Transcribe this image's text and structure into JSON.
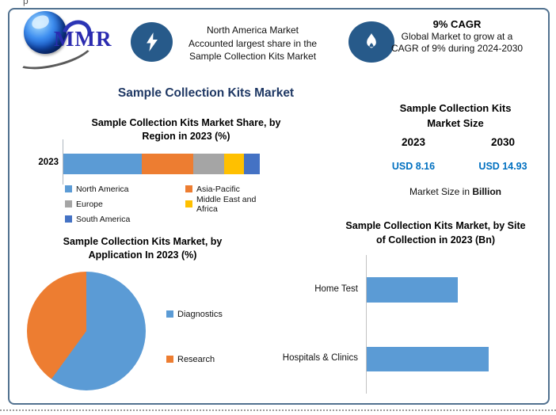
{
  "page": {
    "artifact_top": "p"
  },
  "colors": {
    "accent_navy": "#1F3864",
    "icon_circle_blue": "#275A8A",
    "usd_value_blue": "#0070C0",
    "frame_border": "#51718F",
    "bar_blue": "#5B9BD5",
    "orange": "#ED7D31",
    "gray": "#A5A5A5",
    "yellow": "#FFC000",
    "dark_blue": "#4472C4"
  },
  "header": {
    "logo_text": "MMR",
    "north_america_card": {
      "icon": "lightning-icon",
      "lines": [
        "North America Market",
        "Accounted largest share in the",
        "Sample Collection Kits Market"
      ]
    },
    "cagr_card": {
      "icon": "flame-icon",
      "title": "9% CAGR",
      "lines": [
        "Global Market to grow at a",
        "CAGR of 9% during 2024-2030"
      ]
    }
  },
  "main_title": "Sample Collection Kits Market",
  "region_section": {
    "title_lines": [
      "Sample Collection Kits Market Share, by",
      "Region in 2023 (%)"
    ]
  },
  "market_size_section": {
    "title_lines": [
      "Sample Collection Kits",
      "Market Size"
    ],
    "year_left": "2023",
    "year_right": "2030",
    "value_left": "USD 8.16",
    "value_right": "USD 14.93",
    "note_prefix": "Market Size in ",
    "note_bold": "Billion"
  },
  "application_section": {
    "title_lines": [
      "Sample Collection Kits Market, by",
      "Application In 2023 (%)"
    ]
  },
  "site_section": {
    "title_lines": [
      "Sample Collection Kits Market, by Site",
      "of Collection in 2023 (Bn)"
    ]
  },
  "chart_data": [
    {
      "type": "bar",
      "subtype": "stacked-horizontal",
      "title": "Sample Collection Kits Market Share, by Region in 2023 (%)",
      "categories": [
        "2023"
      ],
      "series": [
        {
          "name": "North America",
          "values": [
            40
          ],
          "color": "#5B9BD5"
        },
        {
          "name": "Asia-Pacific",
          "values": [
            26
          ],
          "color": "#ED7D31"
        },
        {
          "name": "Europe",
          "values": [
            16
          ],
          "color": "#A5A5A5"
        },
        {
          "name": "Middle East and Africa",
          "values": [
            10
          ],
          "color": "#FFC000"
        },
        {
          "name": "South America",
          "values": [
            8
          ],
          "color": "#4472C4"
        }
      ],
      "xlim": [
        0,
        100
      ],
      "legend_position": "bottom",
      "grid": false
    },
    {
      "type": "pie",
      "title": "Sample Collection Kits Market, by Application In 2023 (%)",
      "labels": [
        "Diagnostics",
        "Research"
      ],
      "values": [
        60,
        40
      ],
      "colors": [
        "#5B9BD5",
        "#ED7D31"
      ],
      "start_angle_deg": 0,
      "direction": "clockwise",
      "legend_position": "right"
    },
    {
      "type": "bar",
      "subtype": "horizontal",
      "title": "Sample Collection Kits Market, by Site of Collection in 2023 (Bn)",
      "categories": [
        "Home Test",
        "Hospitals & Clinics"
      ],
      "values": [
        3.5,
        4.7
      ],
      "values_are_estimates": true,
      "unit": "USD Bn",
      "color": "#5B9BD5",
      "grid": false
    }
  ]
}
